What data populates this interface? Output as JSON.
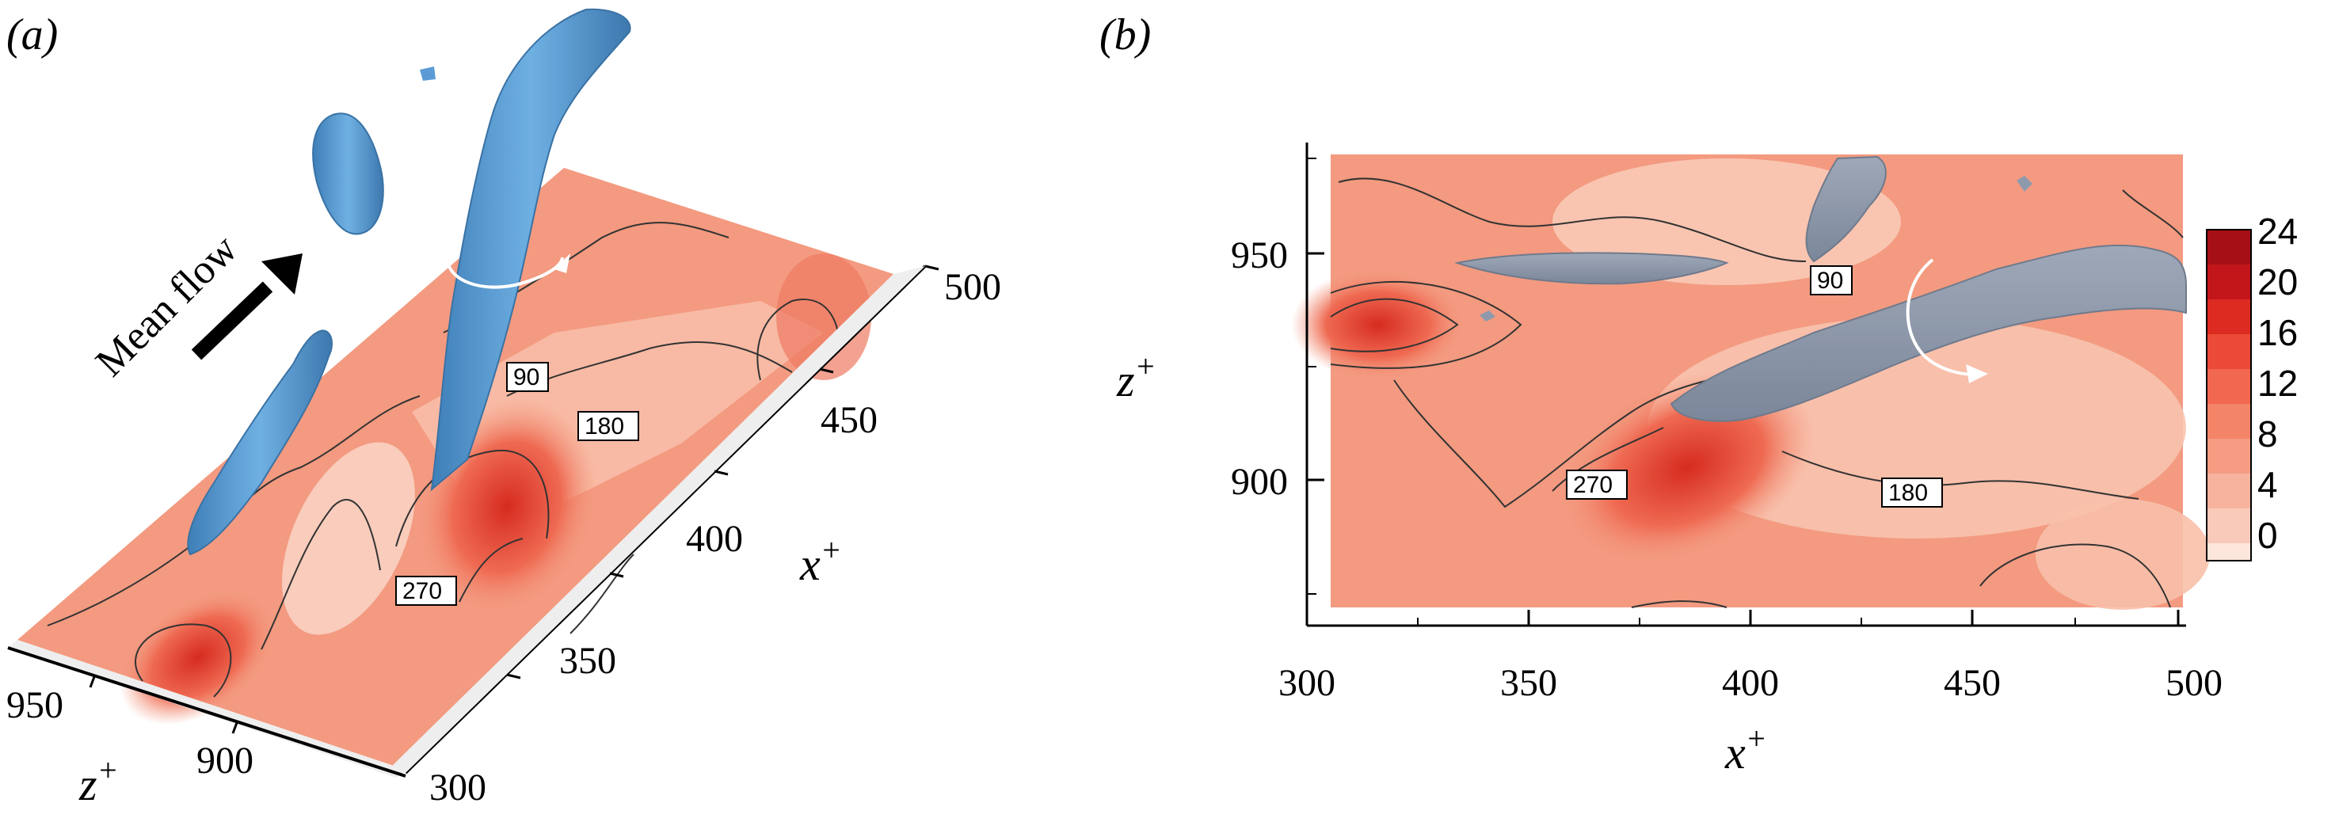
{
  "figure": {
    "panel_a": {
      "label": "(a)",
      "annotation": "Mean flow",
      "x_axis": {
        "label": "x",
        "label_sup": "+",
        "ticks": [
          "500",
          "450",
          "400",
          "350",
          "300"
        ]
      },
      "z_axis": {
        "label": "z",
        "label_sup": "+",
        "ticks": [
          "950",
          "900"
        ]
      },
      "contour_labels": [
        "90",
        "180",
        "270"
      ]
    },
    "panel_b": {
      "label": "(b)",
      "x_axis": {
        "label": "x",
        "label_sup": "+",
        "ticks": [
          "300",
          "350",
          "400",
          "450",
          "500"
        ]
      },
      "z_axis": {
        "label": "z",
        "label_sup": "+",
        "ticks": [
          "950",
          "900"
        ]
      },
      "contour_labels": [
        "90",
        "270",
        "180"
      ],
      "colorbar": {
        "ticks": [
          "24",
          "20",
          "16",
          "12",
          "8",
          "4",
          "0"
        ]
      }
    },
    "colors": {
      "vortex_a": "#5b9bd5",
      "vortex_b": "#8e9aac",
      "contour_base": "#f39a80",
      "contour_high": "#e23a2a",
      "contour_low": "#fbd6c7"
    }
  }
}
